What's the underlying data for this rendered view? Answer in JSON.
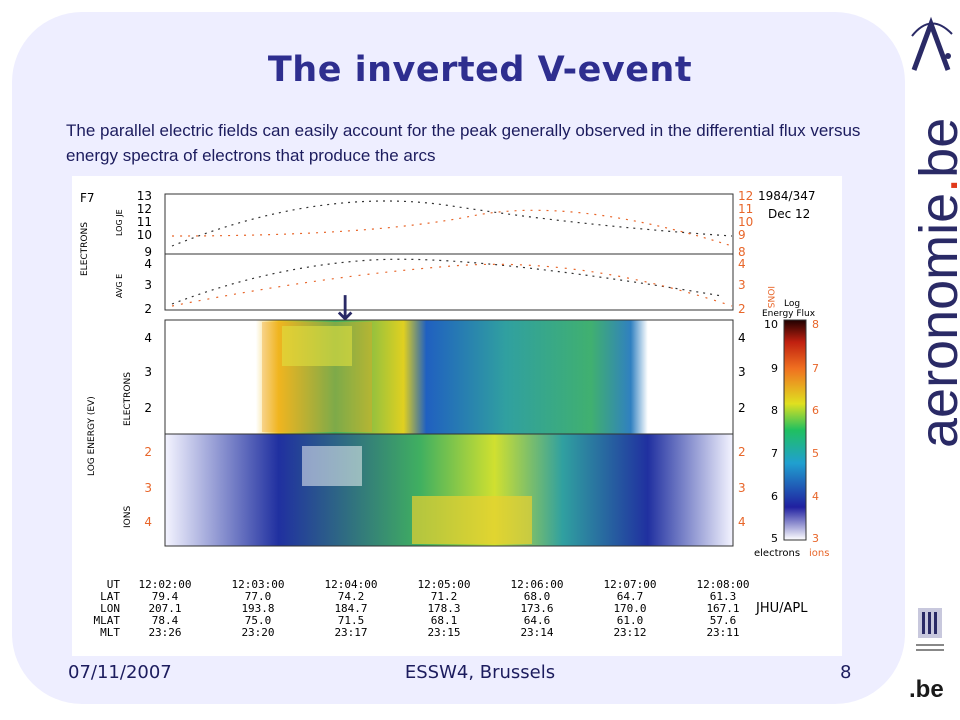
{
  "slide": {
    "title": "The inverted V-event",
    "body": "The parallel electric fields can easily account for the peak generally observed in the differential flux versus energy spectra of electrons that produce the arcs",
    "footer": {
      "date": "07/11/2007",
      "event": "ESSW4, Brussels",
      "page": "8"
    }
  },
  "logo": {
    "brand_prefix": "aeronomie",
    "brand_dot": ".",
    "brand_suffix": "be",
    "be_mark": ".be"
  },
  "figure": {
    "sat": "F7",
    "date_code": "1984/347",
    "date": "Dec 12",
    "top_left_label": "ELECTRONS",
    "top_right_label": "IONS",
    "log_je": "LOG JE",
    "avg_e": "AVG E",
    "log_energy": "LOG ENERGY (EV)",
    "spec_electrons": "ELECTRONS",
    "spec_ions": "IONS",
    "arrow": "↓",
    "colorbar_title1": "Log",
    "colorbar_title2": "Energy Flux",
    "cb_left": [
      "10",
      "9",
      "8",
      "7",
      "6",
      "5"
    ],
    "cb_right": [
      "8",
      "7",
      "6",
      "5",
      "4",
      "3"
    ],
    "cb_foot_e": "electrons",
    "cb_foot_i": "ions",
    "credit": "JHU/APL",
    "je_left": [
      "13",
      "12",
      "11",
      "10",
      "9"
    ],
    "je_right": [
      "12",
      "11",
      "10",
      "9",
      "8"
    ],
    "avg_left": [
      "4",
      "3",
      "2"
    ],
    "avg_right": [
      "4",
      "3",
      "2"
    ],
    "e_ticks": [
      "4",
      "3",
      "2"
    ],
    "i_ticks": [
      "2",
      "3",
      "4"
    ],
    "row_labels": [
      "UT",
      "LAT",
      "LON",
      "MLAT",
      "MLT"
    ],
    "columns": [
      [
        "12:02:00",
        "79.4",
        "207.1",
        "78.4",
        "23:26"
      ],
      [
        "12:03:00",
        "77.0",
        "193.8",
        "75.0",
        "23:20"
      ],
      [
        "12:04:00",
        "74.2",
        "184.7",
        "71.5",
        "23:17"
      ],
      [
        "12:05:00",
        "71.2",
        "178.3",
        "68.1",
        "23:15"
      ],
      [
        "12:06:00",
        "68.0",
        "173.6",
        "64.6",
        "23:14"
      ],
      [
        "12:07:00",
        "64.7",
        "170.0",
        "61.0",
        "23:12"
      ],
      [
        "12:08:00",
        "61.3",
        "167.1",
        "57.6",
        "23:11"
      ]
    ]
  },
  "colors": {
    "title": "#2e2e8f",
    "panel": "#eeeeff",
    "orange": "#e8662a"
  }
}
